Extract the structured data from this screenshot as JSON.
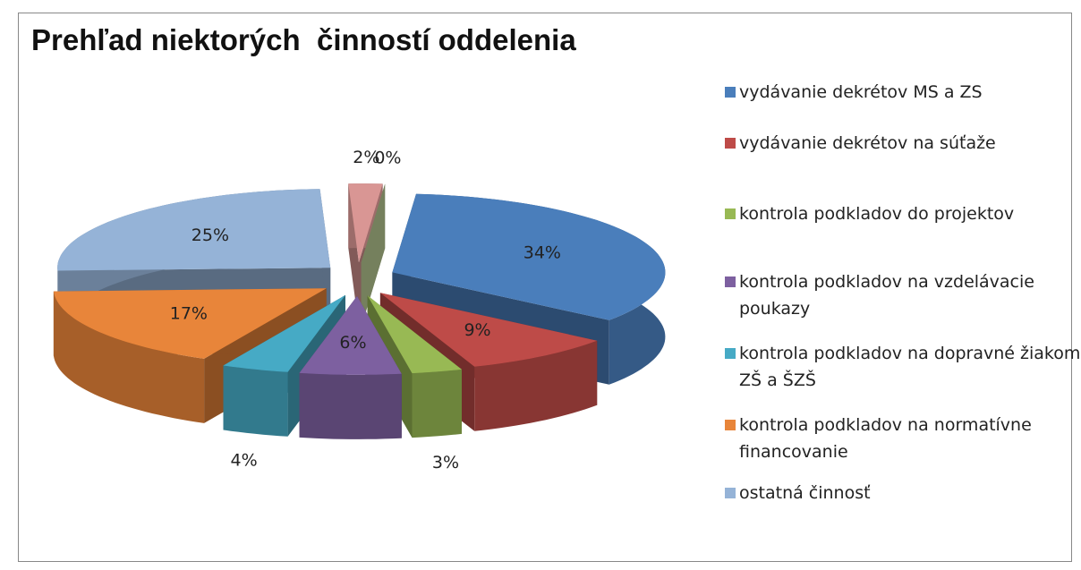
{
  "chart_data": {
    "type": "pie",
    "title": "Prehľad niektorých  činností oddelenia",
    "categories": [
      "vydávanie dekrétov MS a ZS",
      "vydávanie dekrétov na súťaže",
      "kontrola podkladov do projektov",
      "kontrola podkladov na vzdelávacie poukazy",
      "kontrola podkladov na dopravné žiakom ZŠ a ŠZŠ",
      "kontrola podkladov na normatívne financovanie",
      "ostatná činnosť",
      null,
      null
    ],
    "values": [
      34,
      9,
      3,
      6,
      4,
      17,
      25,
      2,
      0
    ],
    "value_labels": [
      "34%",
      "9%",
      "3%",
      "6%",
      "4%",
      "17%",
      "25%",
      "2%",
      "0%"
    ],
    "colors": [
      "#4a7ebb",
      "#be4b48",
      "#98b954",
      "#7d60a0",
      "#46aac5",
      "#e8853a",
      "#95b3d7",
      "#d99694",
      "#c3d69b"
    ],
    "legend": "right"
  }
}
